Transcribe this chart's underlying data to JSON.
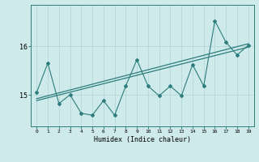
{
  "x": [
    0,
    1,
    2,
    3,
    4,
    5,
    6,
    7,
    8,
    9,
    10,
    11,
    12,
    13,
    14,
    15,
    16,
    17,
    18,
    19
  ],
  "y_zigzag": [
    15.05,
    15.65,
    14.82,
    15.0,
    14.62,
    14.58,
    14.88,
    14.58,
    15.18,
    15.72,
    15.18,
    14.98,
    15.18,
    14.98,
    15.62,
    15.18,
    16.52,
    16.08,
    15.82,
    16.02
  ],
  "trend1_x": [
    0,
    19
  ],
  "trend1_y": [
    14.88,
    15.98
  ],
  "trend2_x": [
    0,
    19
  ],
  "trend2_y": [
    14.92,
    16.05
  ],
  "background_color": "#ceeaea",
  "line_color": "#2d7d7d",
  "grid_color": "#b0d4d4",
  "xlabel": "Humidex (Indice chaleur)",
  "yticks": [
    15,
    16
  ],
  "ylim": [
    14.35,
    16.85
  ],
  "xlim": [
    -0.5,
    19.5
  ],
  "figsize": [
    3.2,
    2.0
  ],
  "dpi": 100
}
